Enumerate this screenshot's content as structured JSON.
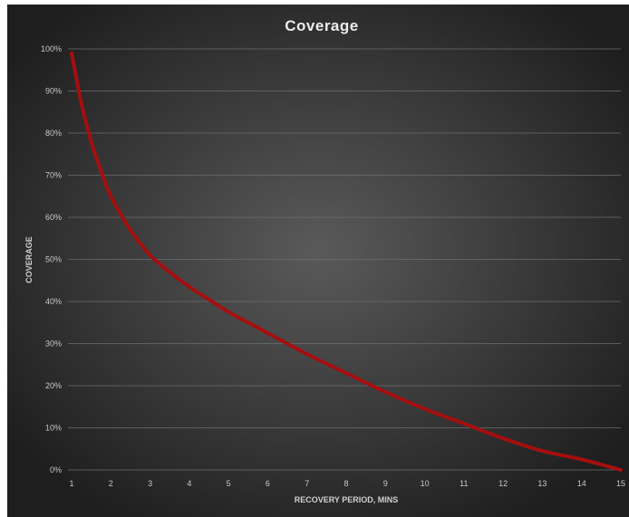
{
  "chart_data": {
    "type": "line",
    "title": "Coverage",
    "xlabel": "RECOVERY PERIOD, MINS",
    "ylabel": "COVERAGE",
    "xlim": [
      1,
      15
    ],
    "ylim": [
      0,
      100
    ],
    "x_ticks": [
      "1",
      "2",
      "3",
      "4",
      "5",
      "6",
      "7",
      "8",
      "9",
      "10",
      "11",
      "12",
      "13",
      "14",
      "15"
    ],
    "y_ticks": [
      "0%",
      "10%",
      "20%",
      "30%",
      "40%",
      "50%",
      "60%",
      "70%",
      "80%",
      "90%",
      "100%"
    ],
    "y_tick_values": [
      0,
      10,
      20,
      30,
      40,
      50,
      60,
      70,
      80,
      90,
      100
    ],
    "grid": "horizontal",
    "legend": "none",
    "series": [
      {
        "color": "#a50f0f",
        "x": [
          1,
          1.25,
          1.5,
          1.75,
          2,
          2.5,
          3,
          3.5,
          4,
          4.5,
          5,
          6,
          7,
          8,
          9,
          10,
          11,
          12,
          13,
          14,
          15
        ],
        "y": [
          99,
          87,
          78,
          71,
          65,
          57,
          51,
          47,
          43.5,
          40.5,
          37.5,
          32.5,
          27.5,
          23,
          18.5,
          14.5,
          11,
          7.5,
          4.5,
          2.5,
          0
        ]
      }
    ]
  },
  "colors": {
    "background_center": "#5a5a5a",
    "background_edge": "#1e1e1e",
    "gridline": "#6e6e6e",
    "line": "#a50f0f"
  }
}
